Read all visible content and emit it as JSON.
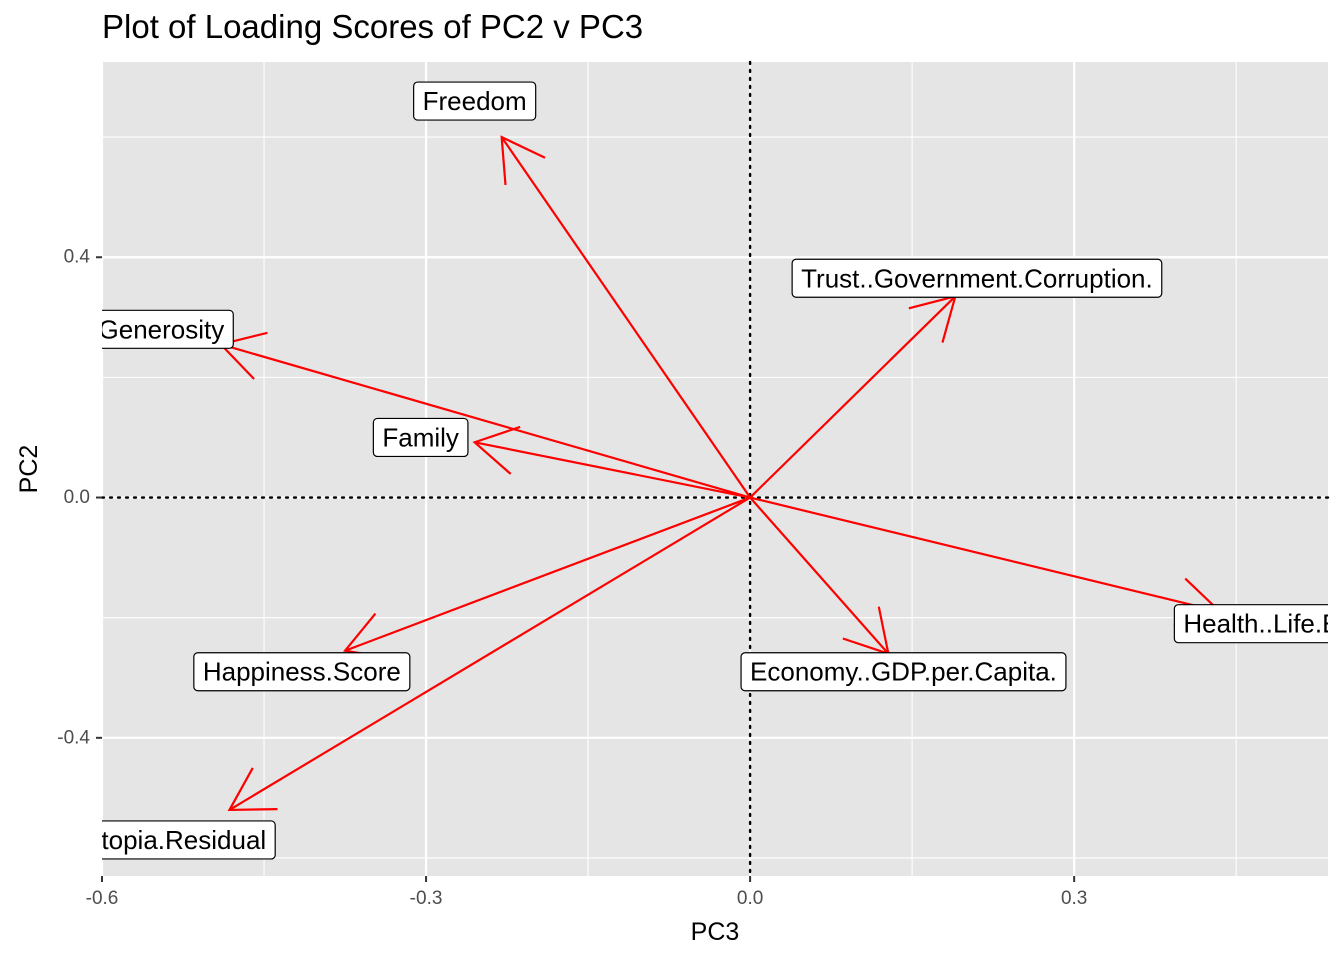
{
  "chart_data": {
    "type": "scatter",
    "title": "Plot of Loading Scores of PC2 v PC3",
    "xlabel": "PC3",
    "ylabel": "PC2",
    "xlim": [
      -0.6,
      0.535
    ],
    "ylim": [
      -0.63,
      0.725
    ],
    "x_ticks": [
      -0.6,
      -0.3,
      0.0,
      0.3
    ],
    "y_ticks": [
      -0.4,
      0.0,
      0.4
    ],
    "x_tick_labels": [
      "-0.6",
      "-0.3",
      "0.0",
      "0.3"
    ],
    "y_tick_labels": [
      "-0.4",
      "0.0",
      "0.4"
    ],
    "grid": true,
    "reference_lines": {
      "x": 0.0,
      "y": 0.0,
      "style": "dotted"
    },
    "arrow_color": "#ff0000",
    "panel_color": "#e5e5e5",
    "loadings": [
      {
        "variable": "Freedom",
        "x": -0.23,
        "y": 0.6,
        "label": "Freedom",
        "label_x": -0.255,
        "label_y": 0.66
      },
      {
        "variable": "Generosity",
        "x": -0.49,
        "y": 0.255,
        "label": "Generosity",
        "label_x": -0.545,
        "label_y": 0.28
      },
      {
        "variable": "Family",
        "x": -0.255,
        "y": 0.092,
        "label": "Family",
        "label_x": -0.305,
        "label_y": 0.1
      },
      {
        "variable": "Trust..Government.Corruption.",
        "x": 0.19,
        "y": 0.335,
        "label": "Trust..Government.Corruption.",
        "label_x": 0.21,
        "label_y": 0.365
      },
      {
        "variable": "Health..Life.Expectancy.",
        "x": 0.435,
        "y": -0.19,
        "label": "Health..Life.Expectancy.",
        "label_x": 0.53,
        "label_y": -0.21
      },
      {
        "variable": "Economy..GDP.per.Capita.",
        "x": 0.128,
        "y": -0.26,
        "label": "Economy..GDP.per.Capita.",
        "label_x": 0.142,
        "label_y": -0.29
      },
      {
        "variable": "Happiness.Score",
        "x": -0.375,
        "y": -0.255,
        "label": "Happiness.Score",
        "label_x": -0.415,
        "label_y": -0.29
      },
      {
        "variable": "Dystopia.Residual",
        "x": -0.482,
        "y": -0.52,
        "label": "Dystopia.Residual",
        "label_x": -0.545,
        "label_y": -0.57
      }
    ]
  }
}
